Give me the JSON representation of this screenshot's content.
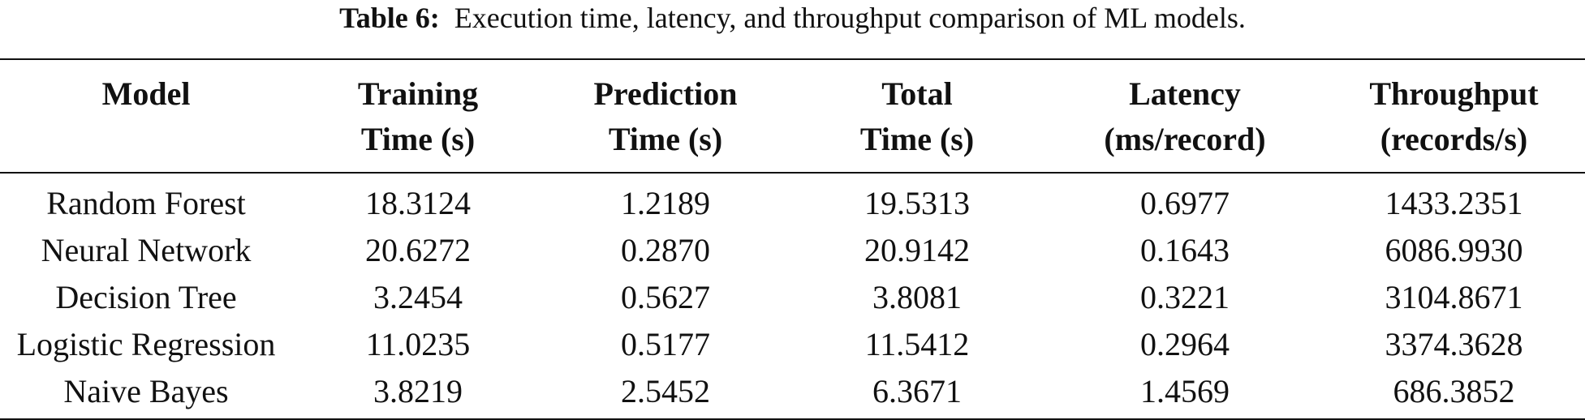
{
  "caption": {
    "label": "Table 6:",
    "text": "Execution time, latency, and throughput comparison of ML models."
  },
  "table": {
    "headers": [
      {
        "line1": "Model",
        "line2": ""
      },
      {
        "line1": "Training",
        "line2": "Time (s)"
      },
      {
        "line1": "Prediction",
        "line2": "Time (s)"
      },
      {
        "line1": "Total",
        "line2": "Time (s)"
      },
      {
        "line1": "Latency",
        "line2": "(ms/record)"
      },
      {
        "line1": "Throughput",
        "line2": "(records/s)"
      }
    ],
    "rows": [
      [
        "Random Forest",
        "18.3124",
        "1.2189",
        "19.5313",
        "0.6977",
        "1433.2351"
      ],
      [
        "Neural Network",
        "20.6272",
        "0.2870",
        "20.9142",
        "0.1643",
        "6086.9930"
      ],
      [
        "Decision Tree",
        "3.2454",
        "0.5627",
        "3.8081",
        "0.3221",
        "3104.8671"
      ],
      [
        "Logistic Regression",
        "11.0235",
        "0.5177",
        "11.5412",
        "0.2964",
        "3374.3628"
      ],
      [
        "Naive Bayes",
        "3.8219",
        "2.5452",
        "6.3671",
        "1.4569",
        "686.3852"
      ]
    ]
  }
}
